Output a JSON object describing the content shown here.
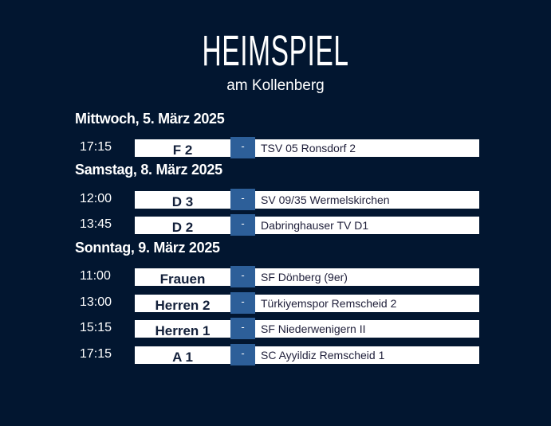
{
  "header": {
    "title": "HEIMSPIEL",
    "subtitle": "am Kollenberg"
  },
  "colors": {
    "background": "#021630",
    "accent": "#2d5f99"
  },
  "days": [
    {
      "label": "Mittwoch, 5. März 2025",
      "matches": [
        {
          "time": "17:15",
          "home": "F 2",
          "sep": "-",
          "away": "TSV 05 Ronsdorf 2"
        }
      ]
    },
    {
      "label": "Samstag, 8. März 2025",
      "matches": [
        {
          "time": "12:00",
          "home": "D 3",
          "sep": "-",
          "away": "SV 09/35 Wermelskirchen"
        },
        {
          "time": "13:45",
          "home": "D 2",
          "sep": "-",
          "away": "Dabringhauser TV D1"
        }
      ]
    },
    {
      "label": "Sonntag, 9. März 2025",
      "matches": [
        {
          "time": "11:00",
          "home": "Frauen",
          "sep": "-",
          "away": "SF Dönberg (9er)"
        },
        {
          "time": "13:00",
          "home": "Herren 2",
          "sep": "-",
          "away": "Türkiyemspor Remscheid 2"
        },
        {
          "time": "15:15",
          "home": "Herren 1",
          "sep": "-",
          "away": "SF Niederwenigern II"
        },
        {
          "time": "17:15",
          "home": "A 1",
          "sep": "-",
          "away": "SC Ayyildiz Remscheid 1"
        }
      ]
    }
  ]
}
